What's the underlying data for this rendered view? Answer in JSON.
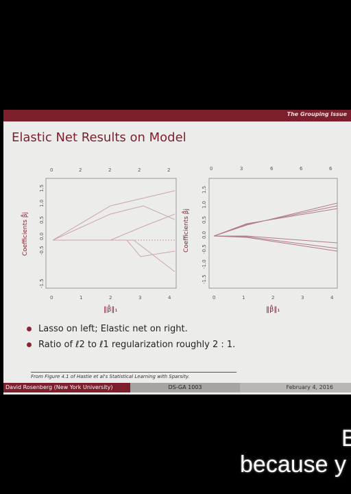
{
  "slide": {
    "section": "The Grouping Issue",
    "title": "Elastic Net Results on Model",
    "left_plot": {
      "top_ticks": [
        "0",
        "2",
        "2",
        "2",
        "2"
      ],
      "y_ticks": [
        "-1.5",
        "-0.5",
        "0.0",
        "0.5",
        "1.0",
        "1.5"
      ],
      "x_ticks": [
        "0",
        "1",
        "2",
        "3",
        "4"
      ],
      "ylabel": "Coefficients β̂j",
      "xlabel": "‖β̂‖₁"
    },
    "right_plot": {
      "top_ticks": [
        "0",
        "3",
        "6",
        "6",
        "6"
      ],
      "y_ticks": [
        "-1.5",
        "-1.0",
        "-0.5",
        "0.0",
        "0.5",
        "1.0",
        "1.5"
      ],
      "x_ticks": [
        "0",
        "1",
        "2",
        "3",
        "4"
      ],
      "ylabel": "Coefficients β̂j",
      "xlabel": "‖β̂‖₁"
    },
    "bullets": [
      "Lasso on left; Elastic net on right.",
      "Ratio of ℓ2 to ℓ1 regularization roughly 2 : 1."
    ],
    "caption": "From Figure 4.1 of Hastie et al's Statistical Learning with Sparsity.",
    "footer": {
      "author": "David Rosenberg (New York University)",
      "course": "DS-GA 1003",
      "date": "February 4, 2016"
    }
  },
  "subtitle": {
    "line1": "B",
    "line2": "because y"
  },
  "colors": {
    "accent": "#7d1e2c",
    "slide_bg": "#ececeb"
  }
}
